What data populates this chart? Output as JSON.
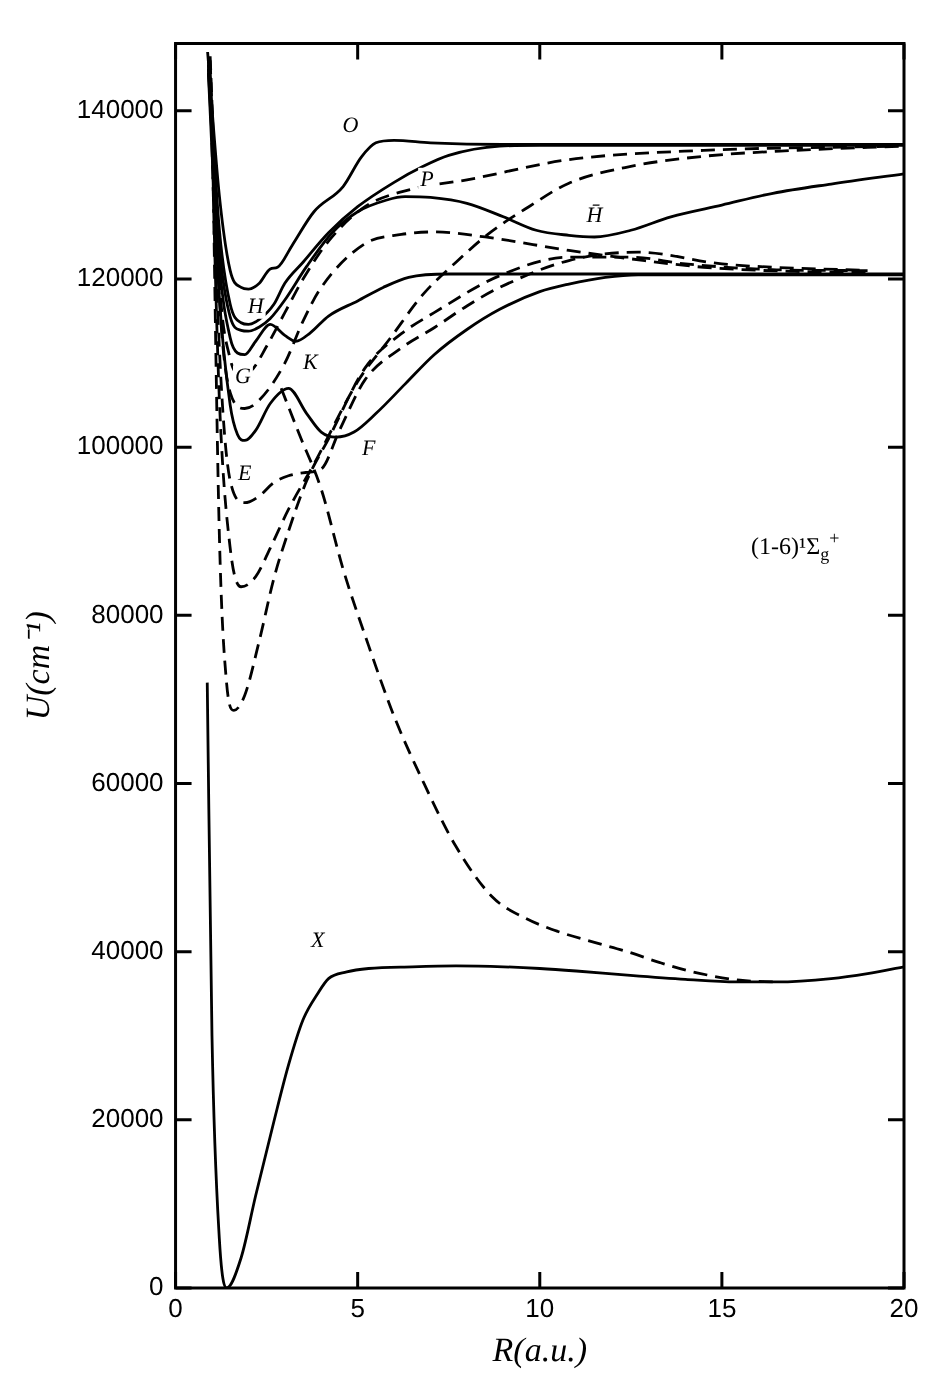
{
  "chart_data": {
    "type": "line",
    "xlabel": "R(a.u.)",
    "ylabel": "U(cm⁻¹)",
    "xlim": [
      0,
      20
    ],
    "xticks": [
      0,
      5,
      10,
      15,
      20
    ],
    "ylim": [
      0,
      148000
    ],
    "yticks": [
      0,
      20000,
      40000,
      60000,
      80000,
      100000,
      120000,
      140000
    ],
    "grid": false,
    "legend": false,
    "marker": "none",
    "series": [
      {
        "color": "#000000",
        "line_style": "solid",
        "x": [
          0.87,
          1.0,
          1.2,
          1.4,
          1.8,
          2.2,
          2.7,
          3.1,
          3.5,
          3.9,
          4.2,
          4.7,
          5.3,
          6.5,
          7.7,
          9,
          10,
          11,
          12.4,
          14,
          15.4,
          16.5,
          18,
          19,
          20
        ],
        "values": [
          72000,
          30000,
          6000,
          0,
          3600,
          11000,
          19800,
          26500,
          31900,
          35000,
          36800,
          37600,
          38000,
          38200,
          38300,
          38200,
          38000,
          37700,
          37200,
          36700,
          36400,
          36400,
          36800,
          37400,
          38200
        ]
      },
      {
        "color": "#000000",
        "line_style": "solid",
        "x": [
          0.88,
          1.2,
          1.5,
          1.8,
          2.0,
          2.3,
          2.6,
          2.8,
          3.2,
          3.8,
          4.6,
          5.1,
          5.5,
          6,
          7,
          9,
          12,
          16,
          20
        ],
        "values": [
          147000,
          130000,
          121000,
          119000,
          118800,
          119500,
          121200,
          121400,
          124000,
          128000,
          131000,
          134500,
          136200,
          136500,
          136200,
          136000,
          136000,
          136000,
          136000
        ]
      },
      {
        "color": "#000000",
        "line_style": "solid",
        "x": [
          0.9,
          1.2,
          1.5,
          1.8,
          2.0,
          2.3,
          2.7,
          3.0,
          3.5,
          4.2,
          5,
          6,
          6.8,
          7.5,
          8.9,
          10,
          12,
          15,
          20
        ],
        "values": [
          146000,
          126000,
          117000,
          114800,
          114600,
          115200,
          117000,
          119500,
          122000,
          125500,
          128600,
          131500,
          133400,
          134700,
          135800,
          135900,
          135900,
          135900,
          135900
        ]
      },
      {
        "color": "#000000",
        "line_style": "solid",
        "x": [
          0.9,
          1.2,
          1.5,
          1.8,
          2.0,
          2.3,
          2.6,
          3.0,
          3.6,
          4.3,
          5,
          5.8,
          6.3,
          7.0,
          8.0,
          9.0,
          9.9,
          10.8,
          11.5,
          12.5,
          13.6,
          15,
          16.4,
          18,
          20
        ],
        "values": [
          145500,
          124000,
          115500,
          113900,
          113800,
          114300,
          115300,
          117500,
          121500,
          125500,
          128000,
          129400,
          129800,
          129700,
          129000,
          127400,
          125800,
          125200,
          125000,
          125800,
          127400,
          128800,
          130200,
          131300,
          132500
        ]
      },
      {
        "color": "#000000",
        "line_style": "solid",
        "x": [
          0.9,
          1.2,
          1.5,
          1.7,
          1.9,
          2.2,
          2.6,
          3.0,
          3.3,
          3.7,
          4.2,
          5.0,
          5.7,
          6.4,
          7.5,
          9,
          12,
          16,
          20
        ],
        "values": [
          145000,
          122000,
          113000,
          111200,
          111000,
          112600,
          114600,
          113300,
          112600,
          113600,
          115600,
          117400,
          119000,
          120200,
          120600,
          120600,
          120600,
          120600,
          120600
        ]
      },
      {
        "color": "#000000",
        "line_style": "solid",
        "x": [
          0.9,
          1.2,
          1.5,
          1.7,
          1.9,
          2.2,
          2.6,
          3.1,
          3.6,
          4.0,
          4.4,
          4.9,
          5.5,
          6.3,
          7.1,
          8.0,
          8.9,
          10,
          10.8,
          11.8,
          12.7,
          15,
          20
        ],
        "values": [
          144500,
          118000,
          105000,
          101500,
          100800,
          102000,
          105200,
          107000,
          104000,
          101800,
          101200,
          101800,
          104000,
          107500,
          111000,
          114000,
          116400,
          118500,
          119400,
          120200,
          120500,
          120500,
          120500
        ]
      },
      {
        "color": "#000000",
        "line_style": "dashed",
        "x": [
          0.95,
          1.2,
          1.5,
          1.8,
          2.1,
          2.5,
          3.0,
          3.5,
          4.2,
          5.2,
          6.5,
          8.0,
          10.8,
          14.5,
          19.8
        ],
        "values": [
          146500,
          120000,
          110500,
          108600,
          109200,
          112000,
          116000,
          120000,
          124500,
          128600,
          130700,
          131800,
          134200,
          135300,
          135800
        ]
      },
      {
        "color": "#000000",
        "line_style": "dashed",
        "x": [
          0.95,
          1.2,
          1.5,
          1.9,
          2.3,
          3.0,
          3.5,
          4.0,
          5.2,
          6.2,
          7.1,
          8.5,
          10.8,
          12.5,
          14.5,
          17,
          19
        ],
        "values": [
          146000,
          118000,
          106500,
          104600,
          105600,
          110000,
          115000,
          119000,
          124200,
          125300,
          125600,
          125000,
          123400,
          122400,
          121400,
          120900,
          120800
        ]
      },
      {
        "color": "#000000",
        "line_style": "dashed",
        "x": [
          0.95,
          1.2,
          1.5,
          1.9,
          2.3,
          2.7,
          3.1,
          3.6,
          4.0,
          4.5,
          5.2,
          6.2,
          7.1,
          8.0,
          8.9,
          10.8,
          12.7,
          15,
          19
        ],
        "values": [
          145000,
          112000,
          96000,
          93400,
          94200,
          95800,
          96600,
          97000,
          97400,
          102000,
          108000,
          111800,
          114200,
          116800,
          119000,
          122200,
          123200,
          121800,
          121000
        ]
      },
      {
        "color": "#000000",
        "line_style": "dashed",
        "x": [
          0.95,
          1.2,
          1.5,
          1.8,
          2.2,
          2.6,
          3.1,
          3.8,
          5.0,
          5.9,
          6.8,
          7.7,
          8.6,
          9.7,
          10.8,
          12.5,
          14.5,
          17,
          20
        ],
        "values": [
          144000,
          106000,
          88000,
          83400,
          84600,
          88000,
          92600,
          98000,
          107800,
          113000,
          118200,
          122000,
          125400,
          128600,
          131400,
          133400,
          134600,
          135300,
          135800
        ]
      },
      {
        "color": "#000000",
        "line_style": "dashed",
        "x": [
          1.0,
          1.2,
          1.4,
          1.6,
          1.9,
          2.3,
          2.7,
          3.1,
          3.6,
          4.2,
          5.2,
          6.2,
          7.1,
          8.9,
          10.8,
          12.5,
          14,
          16.5,
          19
        ],
        "values": [
          140000,
          90000,
          72000,
          68700,
          70500,
          77000,
          84400,
          90000,
          96000,
          101000,
          109400,
          113500,
          116000,
          120400,
          122600,
          122600,
          121800,
          121100,
          121000
        ]
      },
      {
        "color": "#000000",
        "line_style": "dashed",
        "x": [
          2.9,
          3.4,
          4.0,
          4.6,
          5.3,
          6.0,
          6.8,
          7.7,
          8.7,
          9.6,
          10.5,
          11.5,
          12.4,
          13.3,
          14.2,
          15.5,
          16.5
        ],
        "values": [
          107000,
          101500,
          95000,
          85500,
          76400,
          68000,
          60200,
          52500,
          46500,
          44000,
          42400,
          41100,
          40000,
          38700,
          37600,
          36600,
          36400
        ]
      }
    ],
    "annotations": [
      "O",
      "P",
      "H",
      "G",
      "K",
      "E",
      "F",
      "H̄",
      "X",
      "(1-6)¹Σ$_{g}$$^{+}$"
    ]
  }
}
